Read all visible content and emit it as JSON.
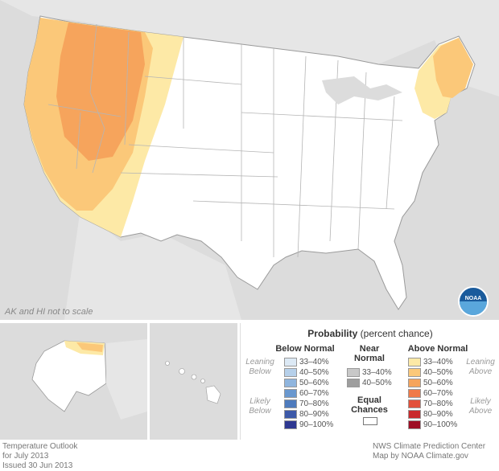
{
  "map": {
    "scale_note": "AK and HI not to scale",
    "logo_text": "NOAA",
    "colors": {
      "land": "#ffffff",
      "background": "#dcdcdc",
      "border": "#9a9a9a",
      "leaning_above": "#fde9a6",
      "above_40_50": "#fbc879",
      "above_50_60": "#f6a45c"
    }
  },
  "legend": {
    "title_bold": "Probability",
    "title_rest": "(percent chance)",
    "below_header": "Below Normal",
    "near_header_1": "Near",
    "near_header_2": "Normal",
    "above_header": "Above Normal",
    "leaning_below_1": "Leaning",
    "leaning_below_2": "Below",
    "likely_below_1": "Likely",
    "likely_below_2": "Below",
    "leaning_above_1": "Leaning",
    "leaning_above_2": "Above",
    "likely_above_1": "Likely",
    "likely_above_2": "Above",
    "equal_1": "Equal",
    "equal_2": "Chances",
    "below": [
      {
        "label": "33–40%",
        "color": "#dce9f5"
      },
      {
        "label": "40–50%",
        "color": "#b6d0ea"
      },
      {
        "label": "50–60%",
        "color": "#8fb5de"
      },
      {
        "label": "60–70%",
        "color": "#6a98cf"
      },
      {
        "label": "70–80%",
        "color": "#4e7bbd"
      },
      {
        "label": "80–90%",
        "color": "#3d59a8"
      },
      {
        "label": "90–100%",
        "color": "#2e3891"
      }
    ],
    "near": [
      {
        "label": "33–40%",
        "color": "#c8c8c8"
      },
      {
        "label": "40–50%",
        "color": "#9e9e9e"
      }
    ],
    "above": [
      {
        "label": "33–40%",
        "color": "#fde9a6"
      },
      {
        "label": "40–50%",
        "color": "#fbc879"
      },
      {
        "label": "50–60%",
        "color": "#f6a45c"
      },
      {
        "label": "60–70%",
        "color": "#f07a48"
      },
      {
        "label": "70–80%",
        "color": "#e2503a"
      },
      {
        "label": "80–90%",
        "color": "#c92a2c"
      },
      {
        "label": "90–100%",
        "color": "#9e0f25"
      }
    ]
  },
  "footer": {
    "left_1": "Temperature Outlook",
    "left_2": "for July 2013",
    "left_3": "Issued 30 Jun 2013",
    "right_1": "NWS Climate Prediction Center",
    "right_2": "Map by NOAA Climate.gov"
  }
}
